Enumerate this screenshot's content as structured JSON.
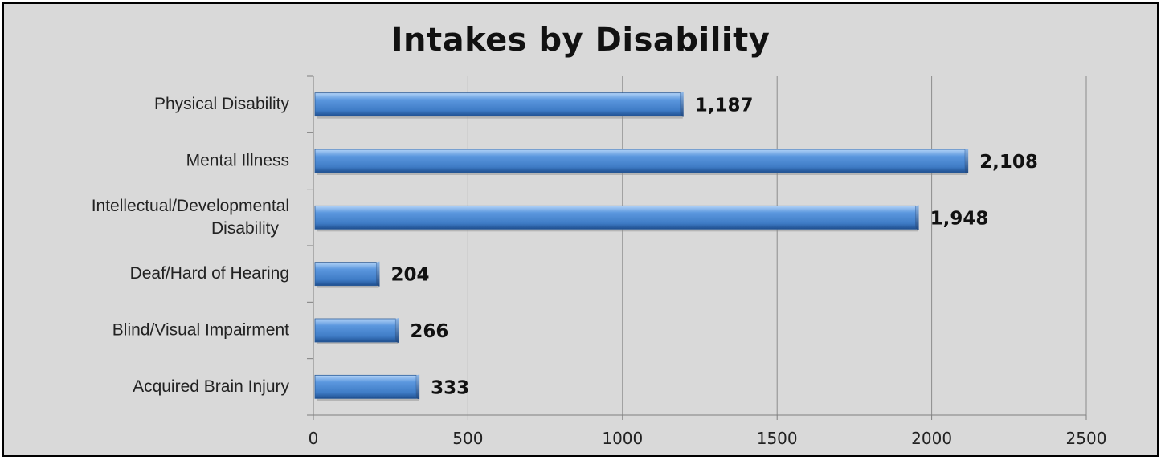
{
  "chart_data": {
    "type": "bar",
    "orientation": "horizontal",
    "title": "Intakes by Disability",
    "categories": [
      "Physical Disability",
      "Mental Illness",
      "Intellectual/Developmental Disability",
      "Deaf/Hard of Hearing",
      "Blind/Visual Impairment",
      "Acquired Brain Injury"
    ],
    "category_label_lines": [
      [
        "Physical Disability"
      ],
      [
        "Mental Illness"
      ],
      [
        "Intellectual/Developmental",
        "Disability"
      ],
      [
        "Deaf/Hard of Hearing"
      ],
      [
        "Blind/Visual Impairment"
      ],
      [
        "Acquired Brain Injury"
      ]
    ],
    "values": [
      1187,
      2108,
      1948,
      204,
      266,
      333
    ],
    "data_labels": [
      "1,187",
      "2,108",
      "1,948",
      "204",
      "266",
      "333"
    ],
    "xlim": [
      0,
      2500
    ],
    "xticks": [
      0,
      500,
      1000,
      1500,
      2000,
      2500
    ],
    "xlabel": "",
    "ylabel": "",
    "grid": true,
    "legend": "none",
    "colors": {
      "bar_main": "#4a86d0",
      "bar_light": "#9cc3f0",
      "bar_dark": "#1f4f8f",
      "background": "#d9d9d9",
      "gridline": "#8c8c8c",
      "axis": "#7f7f7f"
    }
  }
}
